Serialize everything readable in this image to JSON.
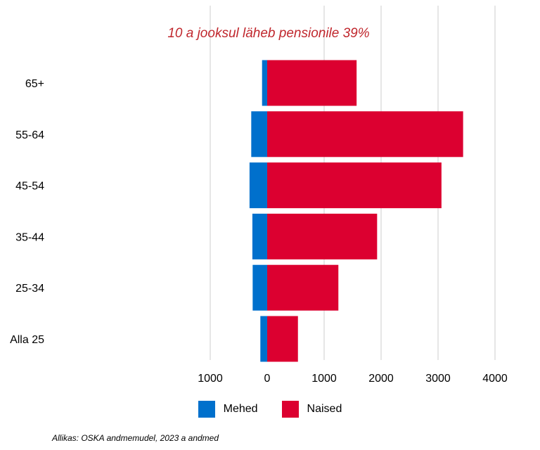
{
  "chart_data": {
    "type": "bar",
    "orientation": "horizontal",
    "layout": "diverging",
    "title": "10 a jooksul läheb pensionile 39%",
    "title_color": "#c0272d",
    "categories": [
      "65+",
      "55-64",
      "45-54",
      "35-44",
      "25-34",
      "Alla 25"
    ],
    "series": [
      {
        "name": "Mehed",
        "color": "#0070cc",
        "values": [
          90,
          280,
          310,
          260,
          255,
          120
        ]
      },
      {
        "name": "Naised",
        "color": "#dc0030",
        "values": [
          1570,
          3440,
          3060,
          1930,
          1250,
          540
        ]
      }
    ],
    "x_ticks": [
      {
        "value": -1000,
        "label": "1000"
      },
      {
        "value": 0,
        "label": "0"
      },
      {
        "value": 1000,
        "label": "1000"
      },
      {
        "value": 2000,
        "label": "2000"
      },
      {
        "value": 3000,
        "label": "3000"
      },
      {
        "value": 4000,
        "label": "4000"
      }
    ],
    "xlim": [
      -1000,
      4000
    ],
    "grid": true,
    "legend_position": "bottom"
  },
  "source": "Allikas: OSKA andmemudel, 2023 a andmed"
}
